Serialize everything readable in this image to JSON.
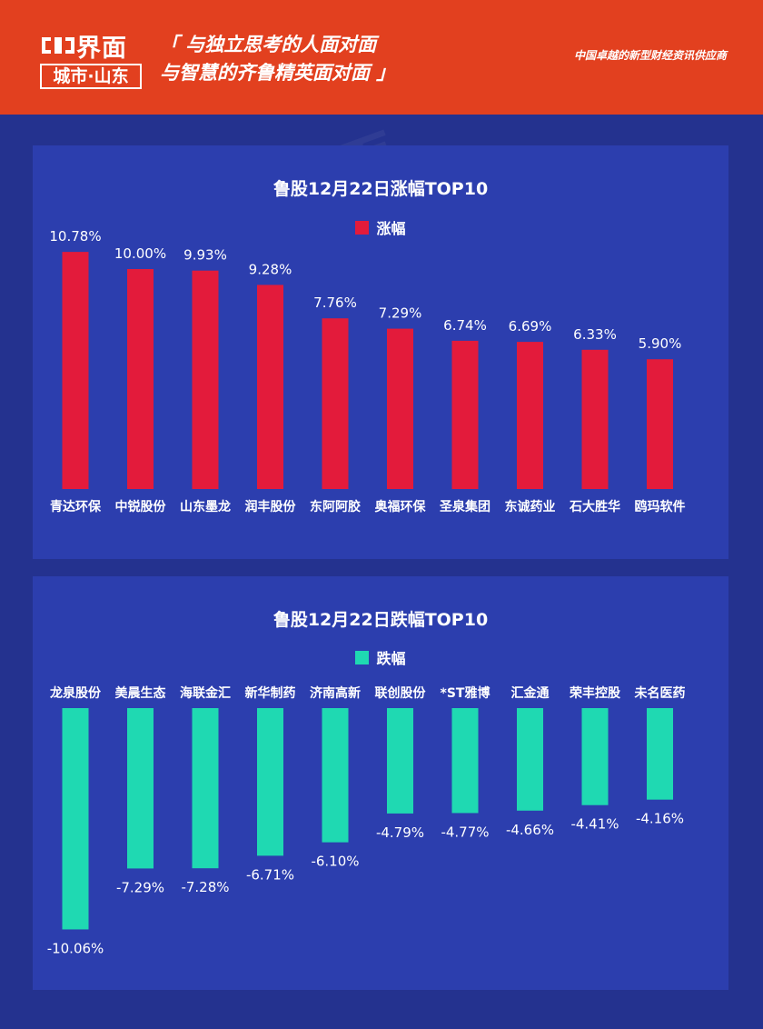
{
  "header": {
    "logo_name": "界面",
    "logo_sub": "城市·山东",
    "slogan_line1": "「 与独立思考的人面对面",
    "slogan_line2": "与智慧的齐鲁精英面对面 」",
    "tagline": "中国卓越的新型财经资讯供应商"
  },
  "colors": {
    "header_bg": "#e2401f",
    "page_bg": "#24328f",
    "panel_bg": "#2c3eae",
    "gain_bar": "#e31b3b",
    "loss_bar": "#1fd9b2"
  },
  "chart_data": [
    {
      "type": "bar",
      "title": "鲁股12月22日涨幅TOP10",
      "series": [
        {
          "name": "涨幅",
          "color": "#e31b3b"
        }
      ],
      "categories": [
        "青达环保",
        "中锐股份",
        "山东墨龙",
        "润丰股份",
        "东阿阿胶",
        "奥福环保",
        "圣泉集团",
        "东诚药业",
        "石大胜华",
        "鸥玛软件"
      ],
      "values": [
        10.78,
        10.0,
        9.93,
        9.28,
        7.76,
        7.29,
        6.74,
        6.69,
        6.33,
        5.9
      ],
      "labels": [
        "10.78%",
        "10.00%",
        "9.93%",
        "9.28%",
        "7.76%",
        "7.29%",
        "6.74%",
        "6.69%",
        "6.33%",
        "5.90%"
      ],
      "unit": "%",
      "legend": "top-center",
      "grid": false
    },
    {
      "type": "bar",
      "title": "鲁股12月22日跌幅TOP10",
      "series": [
        {
          "name": "跌幅",
          "color": "#1fd9b2"
        }
      ],
      "categories": [
        "龙泉股份",
        "美晨生态",
        "海联金汇",
        "新华制药",
        "济南高新",
        "联创股份",
        "*ST雅博",
        "汇金通",
        "荣丰控股",
        "未名医药"
      ],
      "values": [
        -10.06,
        -7.29,
        -7.28,
        -6.71,
        -6.1,
        -4.79,
        -4.77,
        -4.66,
        -4.41,
        -4.16
      ],
      "labels": [
        "-10.06%",
        "-7.29%",
        "-7.28%",
        "-6.71%",
        "-6.10%",
        "-4.79%",
        "-4.77%",
        "-4.66%",
        "-4.41%",
        "-4.16%"
      ],
      "unit": "%",
      "legend": "top-center",
      "grid": false
    }
  ]
}
